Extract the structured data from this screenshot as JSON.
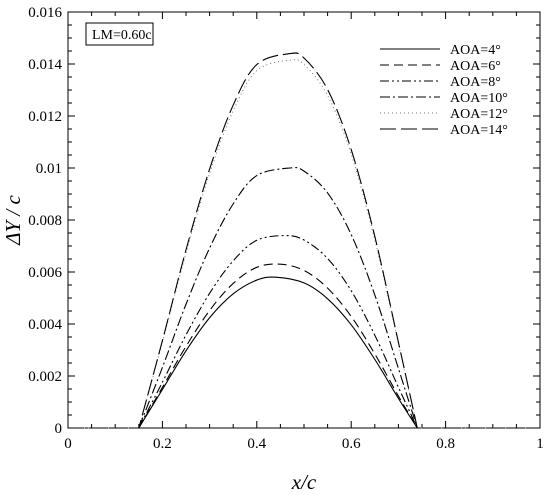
{
  "chart_data": {
    "type": "line",
    "title": "",
    "xlabel": "x/c",
    "ylabel": "ΔY / c",
    "xlim": [
      0,
      1
    ],
    "ylim": [
      0,
      0.016
    ],
    "xticks": [
      0,
      0.2,
      0.4,
      0.6,
      0.8,
      1
    ],
    "xtick_labels": [
      "0",
      "0.2",
      "0.4",
      "0.6",
      "0.8",
      "1"
    ],
    "yticks": [
      0,
      0.002,
      0.004,
      0.006,
      0.008,
      0.01,
      0.012,
      0.014,
      0.016
    ],
    "ytick_labels": [
      "0",
      "0.002",
      "0.004",
      "0.006",
      "0.008",
      "0.01",
      "0.012",
      "0.014",
      "0.016"
    ],
    "grid": false,
    "legend_position": "top-right",
    "annotation": "LM=0.60c",
    "series": [
      {
        "name": "AOA=4°",
        "dash": "solid",
        "x": [
          0,
          0.15,
          0.2,
          0.25,
          0.3,
          0.35,
          0.4,
          0.44,
          0.5,
          0.55,
          0.6,
          0.65,
          0.7,
          0.74,
          1
        ],
        "y": [
          0,
          0,
          0.00148,
          0.00297,
          0.00424,
          0.00516,
          0.00569,
          0.0058,
          0.00558,
          0.00497,
          0.00397,
          0.00264,
          0.00114,
          0,
          0
        ]
      },
      {
        "name": "AOA=6°",
        "dash": "longdash",
        "x": [
          0,
          0.15,
          0.2,
          0.25,
          0.3,
          0.35,
          0.4,
          0.45,
          0.5,
          0.55,
          0.6,
          0.65,
          0.7,
          0.74,
          1
        ],
        "y": [
          0,
          0,
          0.00156,
          0.00314,
          0.00452,
          0.00556,
          0.00618,
          0.0063,
          0.00606,
          0.00538,
          0.00429,
          0.00285,
          0.00123,
          0,
          0
        ]
      },
      {
        "name": "AOA=8°",
        "dash": "dashdotdot",
        "x": [
          0,
          0.15,
          0.2,
          0.25,
          0.3,
          0.35,
          0.4,
          0.46,
          0.5,
          0.55,
          0.6,
          0.65,
          0.7,
          0.74,
          1
        ],
        "y": [
          0,
          0,
          0.00176,
          0.00358,
          0.00518,
          0.00643,
          0.00722,
          0.0074,
          0.00723,
          0.00652,
          0.00528,
          0.00357,
          0.00157,
          0,
          0
        ]
      },
      {
        "name": "AOA=10°",
        "dash": "dashdot",
        "x": [
          0,
          0.15,
          0.2,
          0.25,
          0.3,
          0.35,
          0.4,
          0.47,
          0.5,
          0.55,
          0.6,
          0.65,
          0.7,
          0.74,
          1
        ],
        "y": [
          0,
          0,
          0.00233,
          0.00476,
          0.00692,
          0.00862,
          0.00971,
          0.01,
          0.00988,
          0.00904,
          0.00744,
          0.00512,
          0.00229,
          0,
          0
        ]
      },
      {
        "name": "AOA=12°",
        "dash": "dotted",
        "x": [
          0,
          0.15,
          0.2,
          0.25,
          0.3,
          0.35,
          0.4,
          0.47,
          0.5,
          0.55,
          0.6,
          0.65,
          0.7,
          0.74,
          1
        ],
        "y": [
          0,
          0,
          0.0033,
          0.00673,
          0.00979,
          0.0122,
          0.01374,
          0.01415,
          0.01398,
          0.01279,
          0.01053,
          0.00724,
          0.00325,
          0,
          0
        ]
      },
      {
        "name": "AOA=14°",
        "dash": "dashed",
        "x": [
          0,
          0.15,
          0.2,
          0.25,
          0.3,
          0.35,
          0.4,
          0.47,
          0.5,
          0.55,
          0.6,
          0.65,
          0.7,
          0.74,
          1
        ],
        "y": [
          0,
          0,
          0.00336,
          0.00685,
          0.00996,
          0.01242,
          0.01398,
          0.0144,
          0.01423,
          0.01302,
          0.01071,
          0.00737,
          0.0033,
          0,
          0
        ]
      }
    ]
  },
  "colors": {
    "line": "#000000",
    "background": "#ffffff"
  }
}
